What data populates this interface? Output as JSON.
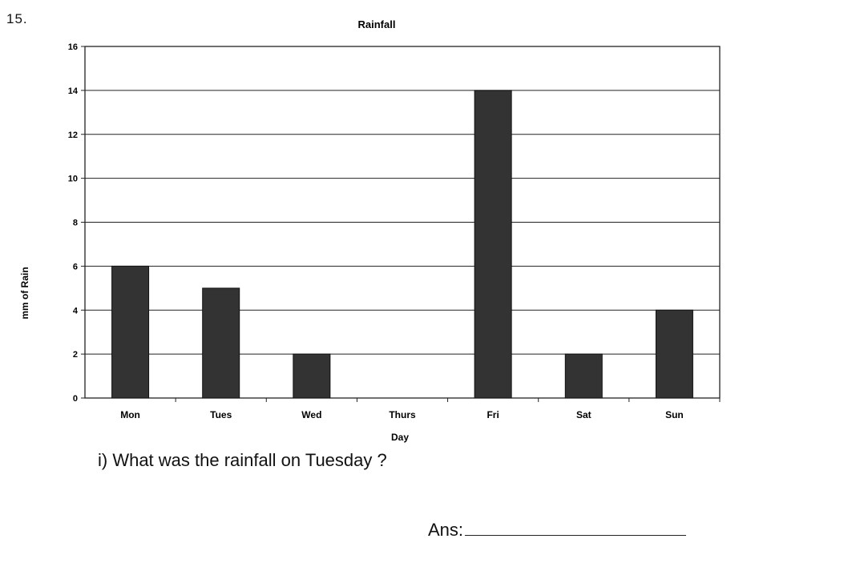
{
  "question_number": "15.",
  "chart_data": {
    "type": "bar",
    "title": "Rainfall",
    "xlabel": "Day",
    "ylabel": "mm of Rain",
    "categories": [
      "Mon",
      "Tues",
      "Wed",
      "Thurs",
      "Fri",
      "Sat",
      "Sun"
    ],
    "values": [
      6,
      5,
      2,
      0,
      14,
      2,
      4
    ],
    "ylim": [
      0,
      16
    ],
    "yticks": [
      0,
      2,
      4,
      6,
      8,
      10,
      12,
      14,
      16
    ],
    "grid": true,
    "legend": "none",
    "bar_color": "#333333"
  },
  "question": "i) What was the rainfall on Tuesday ?",
  "answer_label": "Ans:"
}
